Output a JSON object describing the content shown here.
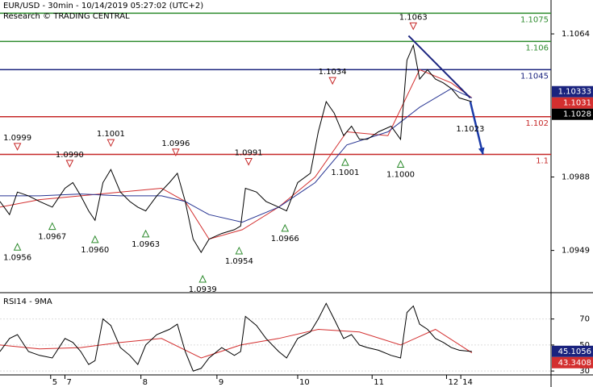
{
  "chart_data": [
    {
      "type": "line",
      "title": "EUR/USD - 30min - 10/14/2019 05:27:02 (UTC+2)",
      "subtitle": "Research © TRADING CENTRAL",
      "x": [
        0,
        6,
        11,
        18,
        25,
        33,
        41,
        46,
        51,
        56,
        60,
        65,
        70,
        76,
        82,
        87,
        92,
        99,
        107,
        112,
        117,
        122,
        127,
        132,
        140,
        148,
        152,
        155,
        162,
        168,
        176,
        181,
        188,
        196,
        201,
        206,
        211,
        217,
        222,
        227,
        232,
        239,
        247,
        253,
        257,
        261,
        265,
        270,
        275,
        280,
        285,
        290,
        298
      ],
      "values": [
        1.0975,
        1.0968,
        1.098,
        1.0978,
        1.0975,
        1.0972,
        1.0982,
        1.0985,
        1.0978,
        1.097,
        1.0965,
        1.0985,
        1.0992,
        1.098,
        1.0975,
        1.0972,
        1.097,
        1.0978,
        1.0985,
        1.099,
        1.0975,
        1.0955,
        1.0948,
        1.0955,
        1.0958,
        1.096,
        1.0962,
        1.0982,
        1.098,
        1.0975,
        1.0972,
        1.097,
        1.0985,
        1.099,
        1.1012,
        1.1028,
        1.1022,
        1.101,
        1.1015,
        1.1008,
        1.1008,
        1.1012,
        1.1015,
        1.1008,
        1.105,
        1.1058,
        1.104,
        1.1045,
        1.104,
        1.1038,
        1.1035,
        1.103,
        1.1028
      ],
      "color": "#000000",
      "xlim": [
        0,
        348
      ],
      "ylim": [
        1.0927,
        1.1082
      ],
      "yticks": [
        1.1064,
        1.0988,
        1.0949
      ],
      "ma": [
        {
          "x": [
            0,
            25,
            51,
            76,
            102,
            117,
            132,
            153,
            176,
            199,
            219,
            245,
            265,
            285,
            298
          ],
          "values": [
            1.0972,
            1.0976,
            1.0978,
            1.098,
            1.0982,
            1.0975,
            1.0955,
            1.096,
            1.0972,
            1.0988,
            1.1012,
            1.101,
            1.1045,
            1.1038,
            1.103
          ],
          "color": "#d32f2f"
        },
        {
          "x": [
            0,
            25,
            51,
            76,
            102,
            117,
            132,
            153,
            176,
            199,
            219,
            245,
            265,
            285,
            298
          ],
          "values": [
            1.0978,
            1.0978,
            1.0979,
            1.0978,
            1.0978,
            1.0975,
            1.0968,
            1.0964,
            1.0972,
            1.0985,
            1.1005,
            1.1012,
            1.1025,
            1.1035,
            1.103
          ],
          "color": "#283593"
        }
      ],
      "levels": [
        {
          "value": 1.1075,
          "color": "#2e8b2e"
        },
        {
          "value": 1.106,
          "color": "#2e8b2e"
        },
        {
          "value": 1.1045,
          "color": "#1a237e"
        },
        {
          "value": 1.102,
          "color": "#c62828"
        },
        {
          "value": 1.1,
          "color": "#c62828"
        }
      ],
      "annotations": [
        {
          "x": 11,
          "value": 1.0999,
          "kind": "high"
        },
        {
          "x": 11,
          "value": 1.0956,
          "kind": "low"
        },
        {
          "x": 33,
          "value": 1.0967,
          "kind": "low"
        },
        {
          "x": 44,
          "value": 1.099,
          "label": "1.0990",
          "kind": "high"
        },
        {
          "x": 60,
          "value": 1.096,
          "label": "1.0960",
          "kind": "low"
        },
        {
          "x": 70,
          "value": 1.1001,
          "kind": "high"
        },
        {
          "x": 92,
          "value": 1.0963,
          "kind": "low"
        },
        {
          "x": 111,
          "value": 1.0996,
          "kind": "high"
        },
        {
          "x": 128,
          "value": 1.0939,
          "kind": "low"
        },
        {
          "x": 157,
          "value": 1.0991,
          "kind": "high"
        },
        {
          "x": 151,
          "value": 1.0954,
          "kind": "low"
        },
        {
          "x": 180,
          "value": 1.0966,
          "kind": "low"
        },
        {
          "x": 210,
          "value": 1.1034,
          "kind": "high"
        },
        {
          "x": 218,
          "value": 1.1001,
          "kind": "low"
        },
        {
          "x": 253,
          "value": 1.1,
          "label": "1.1000",
          "kind": "low"
        },
        {
          "x": 261,
          "value": 1.1063,
          "kind": "high"
        },
        {
          "x": 297,
          "value": 1.1023,
          "kind": "target"
        }
      ],
      "trendline": {
        "x": [
          258,
          297
        ],
        "values": [
          1.1063,
          1.103
        ],
        "color": "#1a237e"
      },
      "forecast": {
        "x": [
          297,
          305
        ],
        "values": [
          1.1028,
          1.1
        ],
        "color": "#1a3aa8"
      },
      "price_tags": [
        {
          "value": 1.10333,
          "color": "#1a237e"
        },
        {
          "value": 1.1031,
          "color": "#d32f2f"
        },
        {
          "value": 1.1028,
          "color": "#000000"
        }
      ]
    },
    {
      "type": "line",
      "title": "RSI14 - 9MA",
      "x": [
        0,
        6,
        11,
        18,
        25,
        33,
        41,
        46,
        51,
        56,
        60,
        65,
        70,
        76,
        82,
        87,
        92,
        99,
        107,
        112,
        117,
        122,
        127,
        132,
        140,
        148,
        152,
        155,
        162,
        168,
        176,
        181,
        188,
        196,
        201,
        206,
        211,
        217,
        222,
        227,
        232,
        239,
        247,
        253,
        257,
        261,
        265,
        270,
        275,
        280,
        285,
        290,
        298
      ],
      "values": [
        45,
        55,
        58,
        45,
        42,
        40,
        55,
        52,
        45,
        35,
        38,
        70,
        65,
        48,
        42,
        35,
        50,
        58,
        62,
        66,
        45,
        30,
        32,
        40,
        48,
        42,
        45,
        72,
        65,
        55,
        45,
        40,
        55,
        60,
        70,
        82,
        70,
        55,
        58,
        50,
        48,
        46,
        42,
        40,
        75,
        80,
        66,
        62,
        55,
        52,
        48,
        46,
        45
      ],
      "color": "#000000",
      "xlim": [
        0,
        348
      ],
      "ylim": [
        27,
        89
      ],
      "yticks": [
        70,
        50,
        30
      ],
      "xticks": [
        {
          "value": 32,
          "label": "5"
        },
        {
          "value": 41,
          "label": "7"
        },
        {
          "value": 89,
          "label": "8"
        },
        {
          "value": 137,
          "label": "9"
        },
        {
          "value": 188,
          "label": "10"
        },
        {
          "value": 235,
          "label": "11"
        },
        {
          "value": 282,
          "label": "12"
        },
        {
          "value": 291,
          "label": "14"
        }
      ],
      "ma": [
        {
          "x": [
            0,
            25,
            51,
            76,
            102,
            127,
            152,
            176,
            201,
            227,
            253,
            275,
            298
          ],
          "values": [
            50,
            47,
            48,
            52,
            55,
            40,
            50,
            55,
            62,
            60,
            50,
            62,
            44
          ],
          "color": "#d32f2f"
        }
      ],
      "price_tags": [
        {
          "value": 45.1056,
          "color": "#1a237e"
        },
        {
          "value": 43.3408,
          "color": "#d32f2f"
        }
      ]
    }
  ]
}
